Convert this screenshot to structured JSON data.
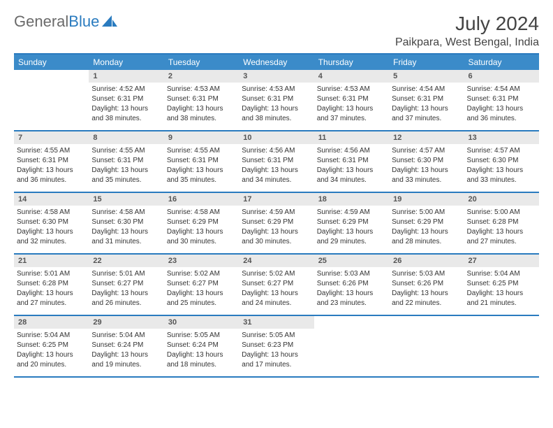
{
  "brand": {
    "part1": "General",
    "part2": "Blue"
  },
  "title": "July 2024",
  "location": "Paikpara, West Bengal, India",
  "accent_color": "#3b8bc9",
  "border_color": "#2a7bbf",
  "day_bg": "#e9e9e9",
  "background_color": "#ffffff",
  "day_names": [
    "Sunday",
    "Monday",
    "Tuesday",
    "Wednesday",
    "Thursday",
    "Friday",
    "Saturday"
  ],
  "weeks": [
    [
      {
        "day": "",
        "lines": []
      },
      {
        "day": "1",
        "lines": [
          "Sunrise: 4:52 AM",
          "Sunset: 6:31 PM",
          "Daylight: 13 hours",
          "and 38 minutes."
        ]
      },
      {
        "day": "2",
        "lines": [
          "Sunrise: 4:53 AM",
          "Sunset: 6:31 PM",
          "Daylight: 13 hours",
          "and 38 minutes."
        ]
      },
      {
        "day": "3",
        "lines": [
          "Sunrise: 4:53 AM",
          "Sunset: 6:31 PM",
          "Daylight: 13 hours",
          "and 38 minutes."
        ]
      },
      {
        "day": "4",
        "lines": [
          "Sunrise: 4:53 AM",
          "Sunset: 6:31 PM",
          "Daylight: 13 hours",
          "and 37 minutes."
        ]
      },
      {
        "day": "5",
        "lines": [
          "Sunrise: 4:54 AM",
          "Sunset: 6:31 PM",
          "Daylight: 13 hours",
          "and 37 minutes."
        ]
      },
      {
        "day": "6",
        "lines": [
          "Sunrise: 4:54 AM",
          "Sunset: 6:31 PM",
          "Daylight: 13 hours",
          "and 36 minutes."
        ]
      }
    ],
    [
      {
        "day": "7",
        "lines": [
          "Sunrise: 4:55 AM",
          "Sunset: 6:31 PM",
          "Daylight: 13 hours",
          "and 36 minutes."
        ]
      },
      {
        "day": "8",
        "lines": [
          "Sunrise: 4:55 AM",
          "Sunset: 6:31 PM",
          "Daylight: 13 hours",
          "and 35 minutes."
        ]
      },
      {
        "day": "9",
        "lines": [
          "Sunrise: 4:55 AM",
          "Sunset: 6:31 PM",
          "Daylight: 13 hours",
          "and 35 minutes."
        ]
      },
      {
        "day": "10",
        "lines": [
          "Sunrise: 4:56 AM",
          "Sunset: 6:31 PM",
          "Daylight: 13 hours",
          "and 34 minutes."
        ]
      },
      {
        "day": "11",
        "lines": [
          "Sunrise: 4:56 AM",
          "Sunset: 6:31 PM",
          "Daylight: 13 hours",
          "and 34 minutes."
        ]
      },
      {
        "day": "12",
        "lines": [
          "Sunrise: 4:57 AM",
          "Sunset: 6:30 PM",
          "Daylight: 13 hours",
          "and 33 minutes."
        ]
      },
      {
        "day": "13",
        "lines": [
          "Sunrise: 4:57 AM",
          "Sunset: 6:30 PM",
          "Daylight: 13 hours",
          "and 33 minutes."
        ]
      }
    ],
    [
      {
        "day": "14",
        "lines": [
          "Sunrise: 4:58 AM",
          "Sunset: 6:30 PM",
          "Daylight: 13 hours",
          "and 32 minutes."
        ]
      },
      {
        "day": "15",
        "lines": [
          "Sunrise: 4:58 AM",
          "Sunset: 6:30 PM",
          "Daylight: 13 hours",
          "and 31 minutes."
        ]
      },
      {
        "day": "16",
        "lines": [
          "Sunrise: 4:58 AM",
          "Sunset: 6:29 PM",
          "Daylight: 13 hours",
          "and 30 minutes."
        ]
      },
      {
        "day": "17",
        "lines": [
          "Sunrise: 4:59 AM",
          "Sunset: 6:29 PM",
          "Daylight: 13 hours",
          "and 30 minutes."
        ]
      },
      {
        "day": "18",
        "lines": [
          "Sunrise: 4:59 AM",
          "Sunset: 6:29 PM",
          "Daylight: 13 hours",
          "and 29 minutes."
        ]
      },
      {
        "day": "19",
        "lines": [
          "Sunrise: 5:00 AM",
          "Sunset: 6:29 PM",
          "Daylight: 13 hours",
          "and 28 minutes."
        ]
      },
      {
        "day": "20",
        "lines": [
          "Sunrise: 5:00 AM",
          "Sunset: 6:28 PM",
          "Daylight: 13 hours",
          "and 27 minutes."
        ]
      }
    ],
    [
      {
        "day": "21",
        "lines": [
          "Sunrise: 5:01 AM",
          "Sunset: 6:28 PM",
          "Daylight: 13 hours",
          "and 27 minutes."
        ]
      },
      {
        "day": "22",
        "lines": [
          "Sunrise: 5:01 AM",
          "Sunset: 6:27 PM",
          "Daylight: 13 hours",
          "and 26 minutes."
        ]
      },
      {
        "day": "23",
        "lines": [
          "Sunrise: 5:02 AM",
          "Sunset: 6:27 PM",
          "Daylight: 13 hours",
          "and 25 minutes."
        ]
      },
      {
        "day": "24",
        "lines": [
          "Sunrise: 5:02 AM",
          "Sunset: 6:27 PM",
          "Daylight: 13 hours",
          "and 24 minutes."
        ]
      },
      {
        "day": "25",
        "lines": [
          "Sunrise: 5:03 AM",
          "Sunset: 6:26 PM",
          "Daylight: 13 hours",
          "and 23 minutes."
        ]
      },
      {
        "day": "26",
        "lines": [
          "Sunrise: 5:03 AM",
          "Sunset: 6:26 PM",
          "Daylight: 13 hours",
          "and 22 minutes."
        ]
      },
      {
        "day": "27",
        "lines": [
          "Sunrise: 5:04 AM",
          "Sunset: 6:25 PM",
          "Daylight: 13 hours",
          "and 21 minutes."
        ]
      }
    ],
    [
      {
        "day": "28",
        "lines": [
          "Sunrise: 5:04 AM",
          "Sunset: 6:25 PM",
          "Daylight: 13 hours",
          "and 20 minutes."
        ]
      },
      {
        "day": "29",
        "lines": [
          "Sunrise: 5:04 AM",
          "Sunset: 6:24 PM",
          "Daylight: 13 hours",
          "and 19 minutes."
        ]
      },
      {
        "day": "30",
        "lines": [
          "Sunrise: 5:05 AM",
          "Sunset: 6:24 PM",
          "Daylight: 13 hours",
          "and 18 minutes."
        ]
      },
      {
        "day": "31",
        "lines": [
          "Sunrise: 5:05 AM",
          "Sunset: 6:23 PM",
          "Daylight: 13 hours",
          "and 17 minutes."
        ]
      },
      {
        "day": "",
        "lines": []
      },
      {
        "day": "",
        "lines": []
      },
      {
        "day": "",
        "lines": []
      }
    ]
  ]
}
